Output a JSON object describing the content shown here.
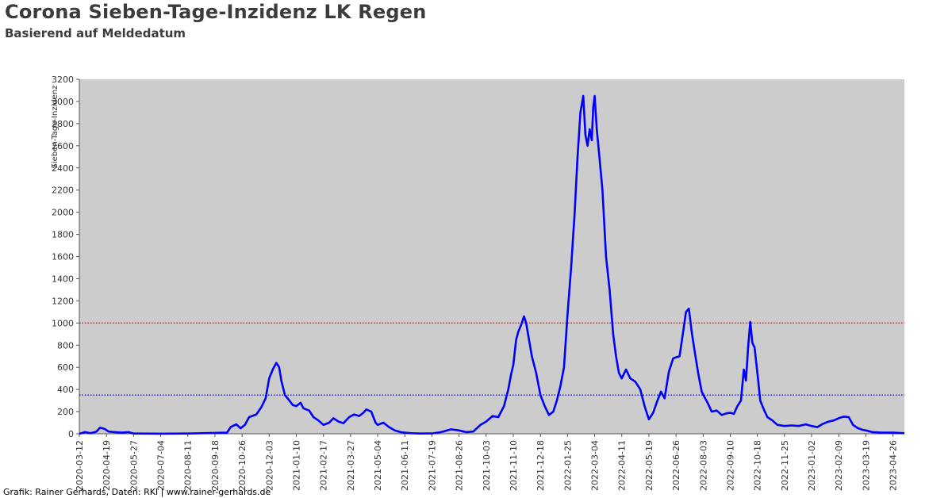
{
  "header": {
    "title": "Corona Sieben-Tage-Inzidenz LK Regen",
    "subtitle": "Basierend auf Meldedatum"
  },
  "footer": {
    "credit": "Grafik: Rainer Gerhards, Daten: RKI | www.rainer-gerhards.de"
  },
  "colors": {
    "plot_background": "#cccccc",
    "series": "#0000ff",
    "threshold_high": "#ff0000",
    "threshold_low": "#0000cc"
  },
  "chart_data": {
    "type": "line",
    "title": "Corona Sieben-Tage-Inzidenz LK Regen",
    "subtitle": "Basierend auf Meldedatum",
    "xlabel": "",
    "ylabel": "Sieben-Tage-Inzidenz",
    "ylim": [
      0,
      3200
    ],
    "yticks": [
      0,
      200,
      400,
      600,
      800,
      1000,
      1200,
      1400,
      1600,
      1800,
      2000,
      2200,
      2400,
      2600,
      2800,
      3000,
      3200
    ],
    "xlim": [
      "2020-03-12",
      "2023-05-12"
    ],
    "xticks": [
      "2020-03-12",
      "2020-04-19",
      "2020-05-27",
      "2020-07-04",
      "2020-08-11",
      "2020-09-18",
      "2020-10-26",
      "2020-12-03",
      "2021-01-10",
      "2021-02-17",
      "2021-03-27",
      "2021-05-04",
      "2021-06-11",
      "2021-07-19",
      "2021-08-26",
      "2021-10-03",
      "2021-11-10",
      "2021-12-18",
      "2022-01-25",
      "2022-03-04",
      "2022-04-11",
      "2022-05-19",
      "2022-06-26",
      "2022-08-03",
      "2022-09-10",
      "2022-10-18",
      "2022-11-25",
      "2023-01-02",
      "2023-02-09",
      "2023-03-19",
      "2023-04-26"
    ],
    "grid": false,
    "reference_lines": [
      {
        "value": 1000,
        "color": "#ff0000",
        "style": "dotted"
      },
      {
        "value": 350,
        "color": "#0000cc",
        "style": "dotted"
      }
    ],
    "series": [
      {
        "color": "#0000ff",
        "points": [
          [
            "2020-03-12",
            0
          ],
          [
            "2020-03-20",
            15
          ],
          [
            "2020-03-28",
            5
          ],
          [
            "2020-04-05",
            20
          ],
          [
            "2020-04-10",
            55
          ],
          [
            "2020-04-16",
            45
          ],
          [
            "2020-04-22",
            20
          ],
          [
            "2020-04-30",
            15
          ],
          [
            "2020-05-10",
            10
          ],
          [
            "2020-05-20",
            15
          ],
          [
            "2020-05-27",
            2
          ],
          [
            "2020-07-04",
            1
          ],
          [
            "2020-08-11",
            2
          ],
          [
            "2020-09-18",
            8
          ],
          [
            "2020-10-05",
            10
          ],
          [
            "2020-10-10",
            60
          ],
          [
            "2020-10-18",
            85
          ],
          [
            "2020-10-24",
            50
          ],
          [
            "2020-10-30",
            80
          ],
          [
            "2020-11-05",
            150
          ],
          [
            "2020-11-15",
            175
          ],
          [
            "2020-11-22",
            240
          ],
          [
            "2020-11-28",
            320
          ],
          [
            "2020-12-03",
            500
          ],
          [
            "2020-12-08",
            580
          ],
          [
            "2020-12-13",
            640
          ],
          [
            "2020-12-17",
            600
          ],
          [
            "2020-12-20",
            480
          ],
          [
            "2020-12-25",
            350
          ],
          [
            "2020-12-30",
            310
          ],
          [
            "2021-01-05",
            260
          ],
          [
            "2021-01-10",
            250
          ],
          [
            "2021-01-16",
            280
          ],
          [
            "2021-01-20",
            230
          ],
          [
            "2021-01-28",
            210
          ],
          [
            "2021-02-03",
            150
          ],
          [
            "2021-02-10",
            120
          ],
          [
            "2021-02-17",
            80
          ],
          [
            "2021-02-25",
            100
          ],
          [
            "2021-03-03",
            140
          ],
          [
            "2021-03-10",
            110
          ],
          [
            "2021-03-17",
            95
          ],
          [
            "2021-03-25",
            150
          ],
          [
            "2021-04-01",
            175
          ],
          [
            "2021-04-08",
            160
          ],
          [
            "2021-04-14",
            190
          ],
          [
            "2021-04-18",
            220
          ],
          [
            "2021-04-25",
            200
          ],
          [
            "2021-05-01",
            100
          ],
          [
            "2021-05-04",
            80
          ],
          [
            "2021-05-12",
            100
          ],
          [
            "2021-05-20",
            60
          ],
          [
            "2021-05-28",
            30
          ],
          [
            "2021-06-05",
            15
          ],
          [
            "2021-06-11",
            10
          ],
          [
            "2021-06-20",
            5
          ],
          [
            "2021-07-01",
            2
          ],
          [
            "2021-07-19",
            3
          ],
          [
            "2021-08-01",
            15
          ],
          [
            "2021-08-15",
            40
          ],
          [
            "2021-08-26",
            30
          ],
          [
            "2021-09-05",
            15
          ],
          [
            "2021-09-15",
            20
          ],
          [
            "2021-09-25",
            80
          ],
          [
            "2021-10-03",
            110
          ],
          [
            "2021-10-12",
            160
          ],
          [
            "2021-10-20",
            150
          ],
          [
            "2021-10-28",
            250
          ],
          [
            "2021-11-03",
            400
          ],
          [
            "2021-11-07",
            540
          ],
          [
            "2021-11-10",
            620
          ],
          [
            "2021-11-14",
            850
          ],
          [
            "2021-11-17",
            920
          ],
          [
            "2021-11-22",
            1000
          ],
          [
            "2021-11-25",
            1060
          ],
          [
            "2021-11-28",
            1000
          ],
          [
            "2021-12-02",
            850
          ],
          [
            "2021-12-06",
            700
          ],
          [
            "2021-12-12",
            550
          ],
          [
            "2021-12-18",
            350
          ],
          [
            "2021-12-24",
            250
          ],
          [
            "2021-12-30",
            170
          ],
          [
            "2022-01-05",
            200
          ],
          [
            "2022-01-10",
            300
          ],
          [
            "2022-01-15",
            430
          ],
          [
            "2022-01-20",
            600
          ],
          [
            "2022-01-25",
            1080
          ],
          [
            "2022-01-30",
            1500
          ],
          [
            "2022-02-04",
            2000
          ],
          [
            "2022-02-08",
            2500
          ],
          [
            "2022-02-12",
            2900
          ],
          [
            "2022-02-16",
            3050
          ],
          [
            "2022-02-19",
            2700
          ],
          [
            "2022-02-22",
            2600
          ],
          [
            "2022-02-25",
            2750
          ],
          [
            "2022-02-28",
            2650
          ],
          [
            "2022-03-02",
            2950
          ],
          [
            "2022-03-04",
            3050
          ],
          [
            "2022-03-07",
            2750
          ],
          [
            "2022-03-10",
            2550
          ],
          [
            "2022-03-15",
            2200
          ],
          [
            "2022-03-20",
            1600
          ],
          [
            "2022-03-25",
            1300
          ],
          [
            "2022-03-30",
            900
          ],
          [
            "2022-04-03",
            700
          ],
          [
            "2022-04-07",
            550
          ],
          [
            "2022-04-11",
            500
          ],
          [
            "2022-04-17",
            580
          ],
          [
            "2022-04-23",
            500
          ],
          [
            "2022-04-30",
            470
          ],
          [
            "2022-05-07",
            400
          ],
          [
            "2022-05-13",
            250
          ],
          [
            "2022-05-19",
            130
          ],
          [
            "2022-05-25",
            190
          ],
          [
            "2022-05-31",
            300
          ],
          [
            "2022-06-05",
            380
          ],
          [
            "2022-06-10",
            320
          ],
          [
            "2022-06-16",
            560
          ],
          [
            "2022-06-22",
            680
          ],
          [
            "2022-06-26",
            690
          ],
          [
            "2022-07-01",
            700
          ],
          [
            "2022-07-06",
            920
          ],
          [
            "2022-07-10",
            1100
          ],
          [
            "2022-07-14",
            1130
          ],
          [
            "2022-07-18",
            920
          ],
          [
            "2022-07-22",
            750
          ],
          [
            "2022-07-27",
            550
          ],
          [
            "2022-08-01",
            380
          ],
          [
            "2022-08-05",
            330
          ],
          [
            "2022-08-10",
            270
          ],
          [
            "2022-08-15",
            200
          ],
          [
            "2022-08-22",
            210
          ],
          [
            "2022-08-29",
            170
          ],
          [
            "2022-09-05",
            185
          ],
          [
            "2022-09-10",
            190
          ],
          [
            "2022-09-15",
            180
          ],
          [
            "2022-09-20",
            250
          ],
          [
            "2022-09-25",
            300
          ],
          [
            "2022-09-29",
            580
          ],
          [
            "2022-10-02",
            480
          ],
          [
            "2022-10-05",
            780
          ],
          [
            "2022-10-08",
            1010
          ],
          [
            "2022-10-11",
            820
          ],
          [
            "2022-10-14",
            780
          ],
          [
            "2022-10-18",
            550
          ],
          [
            "2022-10-22",
            300
          ],
          [
            "2022-10-27",
            220
          ],
          [
            "2022-11-01",
            150
          ],
          [
            "2022-11-08",
            120
          ],
          [
            "2022-11-15",
            80
          ],
          [
            "2022-11-25",
            70
          ],
          [
            "2022-12-05",
            75
          ],
          [
            "2022-12-15",
            70
          ],
          [
            "2022-12-25",
            85
          ],
          [
            "2023-01-02",
            70
          ],
          [
            "2023-01-10",
            60
          ],
          [
            "2023-01-18",
            90
          ],
          [
            "2023-01-26",
            110
          ],
          [
            "2023-02-02",
            120
          ],
          [
            "2023-02-09",
            140
          ],
          [
            "2023-02-16",
            155
          ],
          [
            "2023-02-23",
            150
          ],
          [
            "2023-03-01",
            80
          ],
          [
            "2023-03-08",
            50
          ],
          [
            "2023-03-15",
            35
          ],
          [
            "2023-03-19",
            30
          ],
          [
            "2023-03-28",
            15
          ],
          [
            "2023-04-10",
            10
          ],
          [
            "2023-04-26",
            10
          ],
          [
            "2023-05-12",
            5
          ]
        ]
      }
    ]
  }
}
